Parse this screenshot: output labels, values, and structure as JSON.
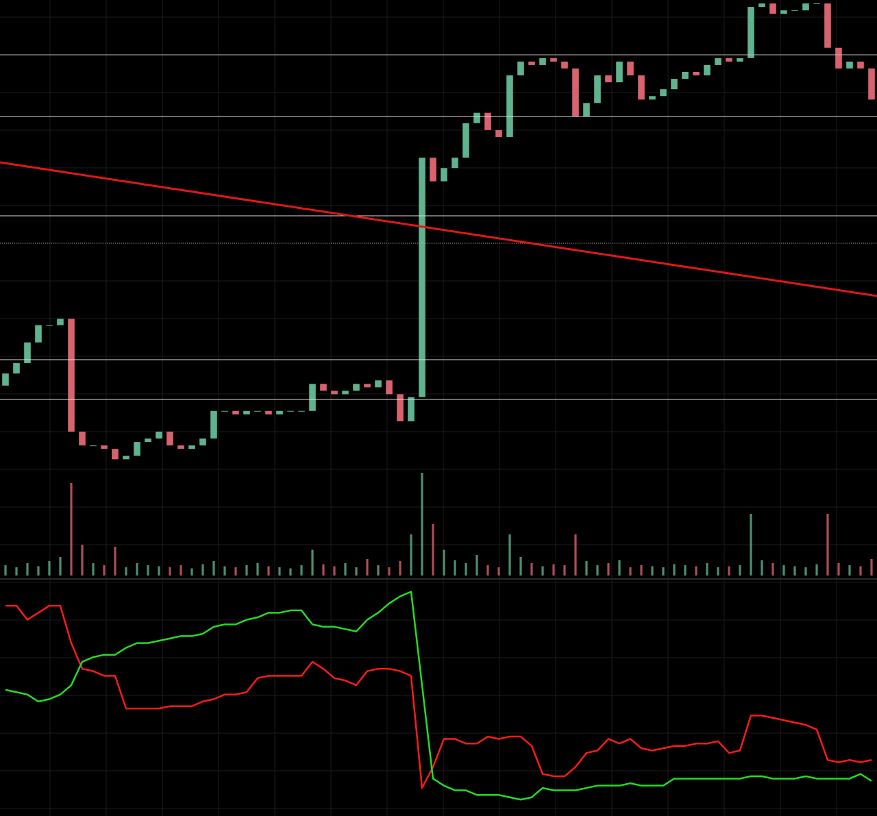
{
  "chart_data": [
    {
      "type": "candlestick",
      "color_up": "#5fb38f",
      "color_down": "#d9626f",
      "ylim": [
        0,
        100
      ],
      "grid": true,
      "open": [
        33.0,
        35.1,
        36.9,
        40.5,
        43.5,
        43.5,
        44.6,
        25.0,
        22.6,
        22.6,
        22.0,
        20.2,
        20.8,
        23.2,
        23.8,
        25.0,
        22.6,
        22.0,
        22.6,
        23.8,
        28.6,
        28.6,
        28.0,
        28.6,
        28.6,
        28.0,
        28.6,
        28.6,
        28.6,
        33.3,
        32.1,
        31.5,
        32.1,
        33.3,
        32.7,
        33.9,
        31.5,
        26.8,
        31.0,
        72.6,
        68.5,
        70.8,
        72.6,
        78.6,
        80.4,
        77.4,
        76.2,
        86.9,
        89.3,
        88.7,
        89.9,
        89.3,
        88.1,
        79.8,
        82.1,
        86.9,
        85.7,
        89.3,
        86.9,
        82.7,
        83.3,
        84.5,
        86.3,
        87.5,
        86.9,
        88.7,
        89.9,
        89.3,
        89.9,
        98.8,
        99.4,
        97.6,
        98.2,
        98.2,
        99.4,
        99.4,
        91.7,
        88.1,
        89.3,
        88.1
      ],
      "close": [
        35.1,
        36.9,
        40.5,
        43.5,
        43.5,
        44.6,
        25.0,
        22.6,
        22.6,
        22.0,
        20.2,
        20.8,
        23.2,
        23.8,
        25.0,
        22.6,
        22.0,
        22.6,
        23.8,
        28.6,
        28.6,
        28.0,
        28.6,
        28.6,
        28.0,
        28.6,
        28.6,
        28.6,
        33.3,
        32.1,
        31.5,
        32.1,
        33.3,
        32.7,
        33.9,
        31.5,
        26.8,
        31.0,
        72.6,
        68.5,
        70.8,
        72.6,
        78.6,
        80.4,
        77.4,
        76.2,
        86.9,
        89.3,
        88.7,
        89.9,
        89.3,
        88.1,
        79.8,
        82.1,
        86.9,
        85.7,
        89.3,
        86.9,
        82.7,
        83.3,
        84.5,
        86.3,
        87.5,
        86.9,
        88.7,
        89.9,
        89.3,
        89.9,
        98.8,
        99.4,
        97.6,
        98.2,
        98.2,
        99.4,
        99.4,
        91.7,
        88.1,
        89.3,
        88.1,
        82.7
      ]
    },
    {
      "type": "bar",
      "ylim": [
        0,
        100
      ],
      "values": [
        10,
        8,
        12,
        9,
        14,
        18,
        90,
        30,
        12,
        10,
        28,
        8,
        12,
        10,
        9,
        8,
        10,
        7,
        11,
        14,
        9,
        8,
        10,
        12,
        9,
        8,
        7,
        10,
        25,
        11,
        9,
        12,
        8,
        16,
        10,
        8,
        14,
        40,
        100,
        50,
        25,
        15,
        12,
        20,
        10,
        8,
        40,
        18,
        12,
        9,
        11,
        10,
        40,
        14,
        10,
        12,
        15,
        8,
        10,
        9,
        8,
        11,
        10,
        9,
        12,
        8,
        9,
        10,
        60,
        15,
        12,
        10,
        9,
        8,
        11,
        60,
        12,
        10,
        9,
        16
      ]
    },
    {
      "type": "line",
      "ylim": [
        0,
        100
      ],
      "series": [
        {
          "color": "#ff1a1a",
          "values": [
            90,
            90,
            84,
            87,
            90,
            90,
            74,
            63,
            62,
            60,
            60,
            46,
            46,
            46,
            46,
            47,
            47,
            47,
            49,
            50,
            52,
            52,
            53,
            59,
            60,
            60,
            60,
            60,
            66,
            63,
            59,
            58,
            56,
            62,
            63,
            63,
            62,
            60,
            12,
            21,
            33,
            33,
            31,
            31,
            34,
            33,
            34,
            34,
            30,
            18,
            17,
            17,
            21,
            27,
            28,
            33,
            31,
            33,
            29,
            28,
            29,
            30,
            30,
            31,
            31,
            32,
            27,
            28,
            43,
            43,
            42,
            41,
            40,
            39,
            37,
            24,
            23,
            24,
            23,
            24
          ]
        },
        {
          "color": "#22dd22",
          "values": [
            54,
            53,
            52,
            49,
            50,
            52,
            56,
            66,
            68,
            69,
            69,
            72,
            74,
            74,
            75,
            76,
            77,
            77,
            78,
            81,
            82,
            82,
            84,
            85,
            87,
            87,
            88,
            88,
            82,
            81,
            81,
            80,
            79,
            84,
            87,
            91,
            94,
            96,
            56,
            16,
            13,
            11,
            11,
            9,
            9,
            9,
            8,
            7,
            8,
            12,
            11,
            11,
            11,
            12,
            13,
            13,
            13,
            14,
            13,
            13,
            13,
            16,
            16,
            16,
            16,
            16,
            16,
            16,
            17,
            17,
            16,
            16,
            16,
            17,
            16,
            16,
            16,
            16,
            18,
            15
          ]
        }
      ]
    }
  ]
}
